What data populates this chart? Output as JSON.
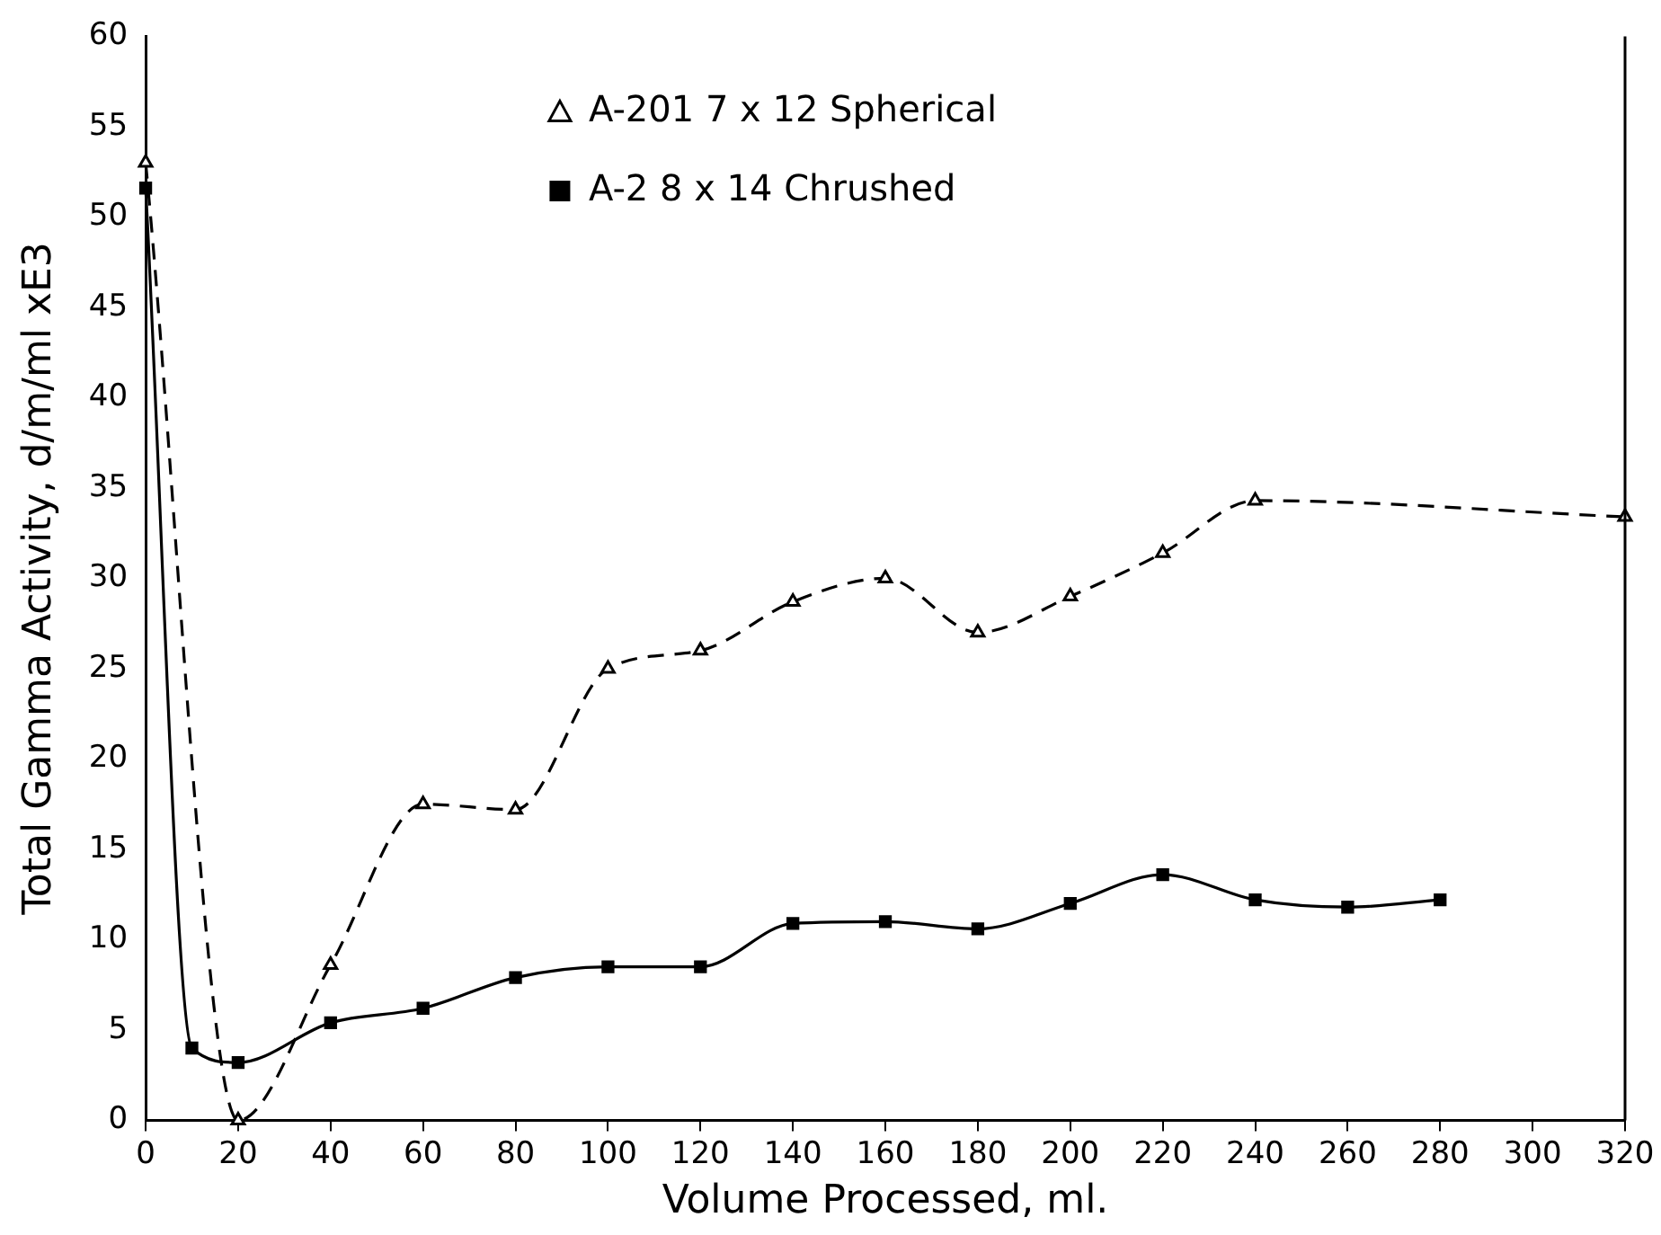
{
  "chart_data": {
    "type": "line",
    "xlabel": "Volume Processed, ml.",
    "ylabel": "Total Gamma Activity, d/m/ml xE3",
    "xlim": [
      0,
      320
    ],
    "xticks": [
      0,
      20,
      40,
      60,
      80,
      100,
      120,
      140,
      160,
      180,
      200,
      220,
      240,
      260,
      280,
      300,
      320
    ],
    "ylim": [
      0,
      60
    ],
    "yticks": [
      0,
      5,
      10,
      15,
      20,
      25,
      30,
      35,
      40,
      45,
      50,
      55,
      60
    ],
    "grid": false,
    "legend": "top",
    "series": [
      {
        "name": "A-201 7 x 12 Spherical",
        "color": "#000000",
        "marker": "triangle",
        "line_style": "dashed",
        "x": [
          0,
          20,
          40,
          60,
          80,
          100,
          120,
          140,
          160,
          180,
          200,
          220,
          240,
          320
        ],
        "values": [
          53,
          0,
          8.6,
          17.5,
          17.2,
          25,
          26,
          28.7,
          30,
          27,
          29,
          31.4,
          34.3,
          33.4
        ]
      },
      {
        "name": "A-2 8 x 14 Chrushed",
        "color": "#000000",
        "marker": "square",
        "line_style": "solid",
        "x": [
          0,
          10,
          20,
          40,
          60,
          80,
          100,
          120,
          140,
          160,
          180,
          200,
          220,
          240,
          260,
          280
        ],
        "values": [
          51.6,
          4,
          3.2,
          5.4,
          6.2,
          7.9,
          8.5,
          8.5,
          10.9,
          11,
          10.6,
          12,
          13.6,
          12.2,
          11.8,
          12.2
        ]
      }
    ]
  }
}
